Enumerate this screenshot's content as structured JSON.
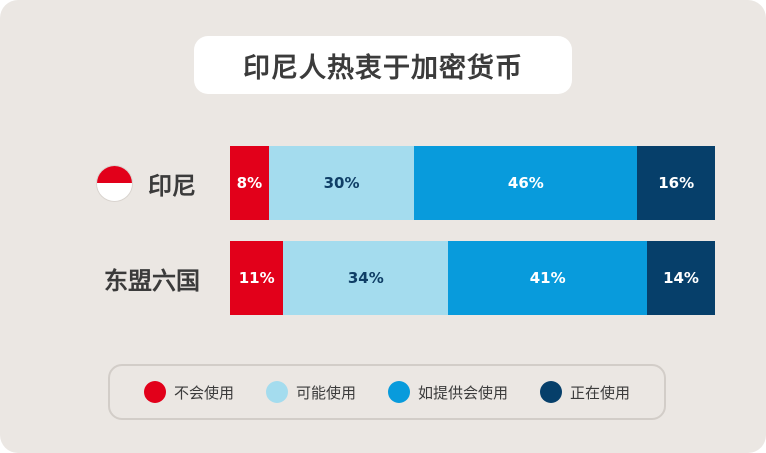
{
  "title": "印尼人热衷于加密货币",
  "chart_data": {
    "type": "bar",
    "orientation": "horizontal-stacked",
    "categories": [
      "印尼",
      "东盟六国"
    ],
    "series": [
      {
        "name": "不会使用",
        "color": "#e2001a",
        "text_color": "#ffffff",
        "values": [
          8,
          11
        ]
      },
      {
        "name": "可能使用",
        "color": "#a4dcee",
        "text_color": "#0f3e66",
        "values": [
          30,
          34
        ]
      },
      {
        "name": "如提供会使用",
        "color": "#089bdc",
        "text_color": "#ffffff",
        "values": [
          46,
          41
        ]
      },
      {
        "name": "正在使用",
        "color": "#063f6a",
        "text_color": "#ffffff",
        "values": [
          16,
          14
        ]
      }
    ],
    "value_suffix": "%",
    "legend": "bottom"
  }
}
